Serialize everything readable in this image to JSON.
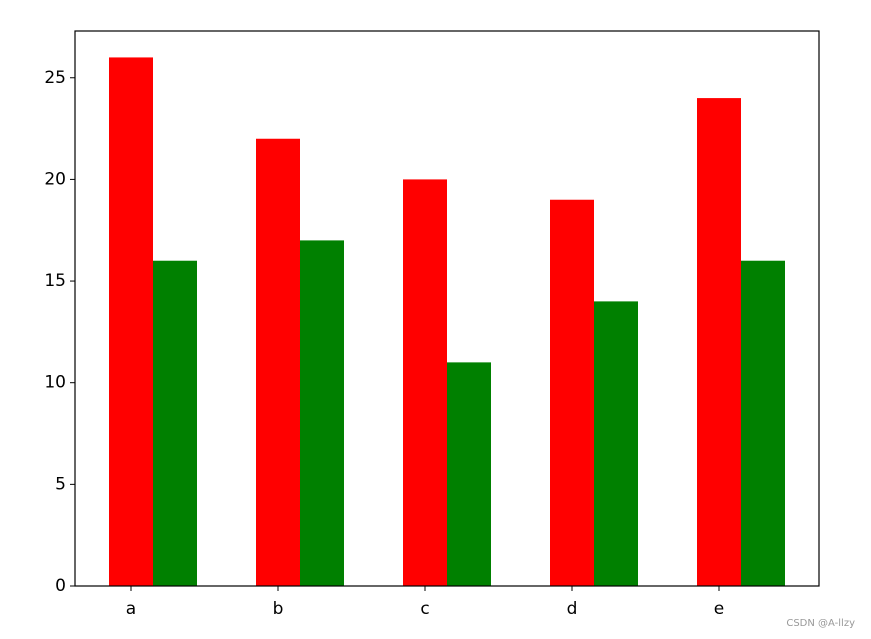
{
  "chart_data": {
    "type": "bar",
    "categories": [
      "a",
      "b",
      "c",
      "d",
      "e"
    ],
    "series": [
      {
        "color": "#ff0000",
        "values": [
          26,
          22,
          20,
          19,
          24
        ]
      },
      {
        "color": "#008000",
        "values": [
          16,
          17,
          11,
          14,
          16
        ]
      }
    ],
    "ylim": [
      0,
      27.3
    ],
    "yticks": [
      0,
      5,
      10,
      15,
      20,
      25
    ],
    "grid": false
  },
  "watermark": "CSDN @A-llzy"
}
